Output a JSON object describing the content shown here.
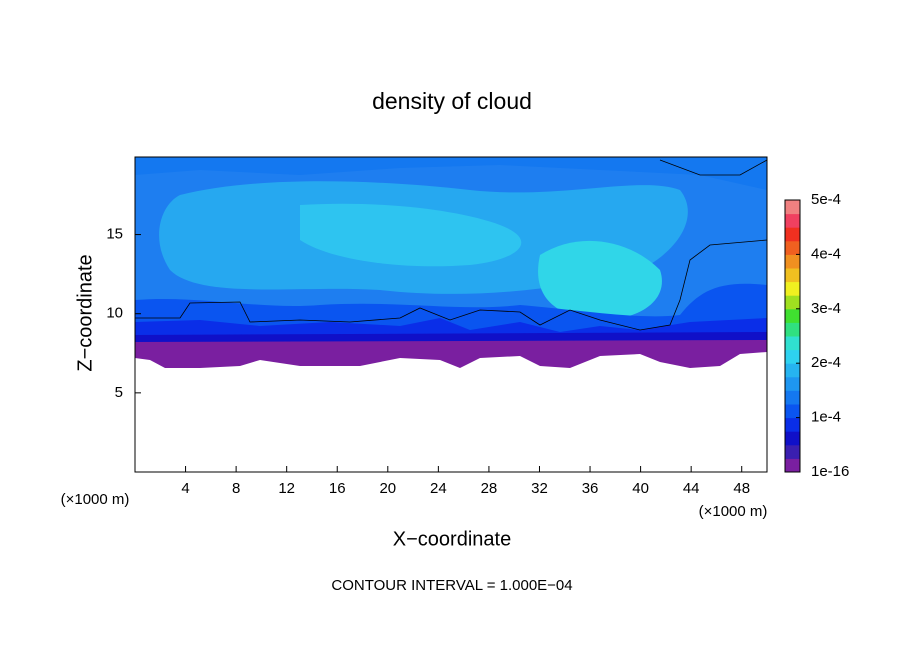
{
  "chart_data": {
    "type": "contour",
    "title": "density of cloud",
    "x_label": "X−coordinate",
    "y_label": "Z−coordinate",
    "x_unit_label": "(×1000 m)",
    "footer": "CONTOUR INTERVAL = 1.000E−04",
    "xlim": [
      0,
      50
    ],
    "xticks": [
      4,
      8,
      12,
      16,
      20,
      24,
      28,
      32,
      36,
      40,
      44,
      48
    ],
    "ylim": [
      0,
      19.9
    ],
    "yticks": [
      5,
      10,
      15
    ],
    "colorbar": {
      "clim": [
        0,
        0.0005
      ],
      "ticks": [
        {
          "value": 1e-16,
          "label": "1e-16"
        },
        {
          "value": 0.0001,
          "label": "1e-4"
        },
        {
          "value": 0.0002,
          "label": "2e-4"
        },
        {
          "value": 0.0003,
          "label": "3e-4"
        },
        {
          "value": 0.0004,
          "label": "4e-4"
        },
        {
          "value": 0.0005,
          "label": "5e-4"
        }
      ],
      "colors": [
        "#7a1fa0",
        "#3a1fb0",
        "#1010c8",
        "#0a2ee8",
        "#0a55f0",
        "#1478f0",
        "#1e96f0",
        "#26b4f0",
        "#2ed2f0",
        "#30e0d0",
        "#30e080",
        "#40e030",
        "#a0e020",
        "#f0f020",
        "#f0c020",
        "#f09020",
        "#f06020",
        "#f03020",
        "#f04060",
        "#f08080"
      ]
    }
  }
}
